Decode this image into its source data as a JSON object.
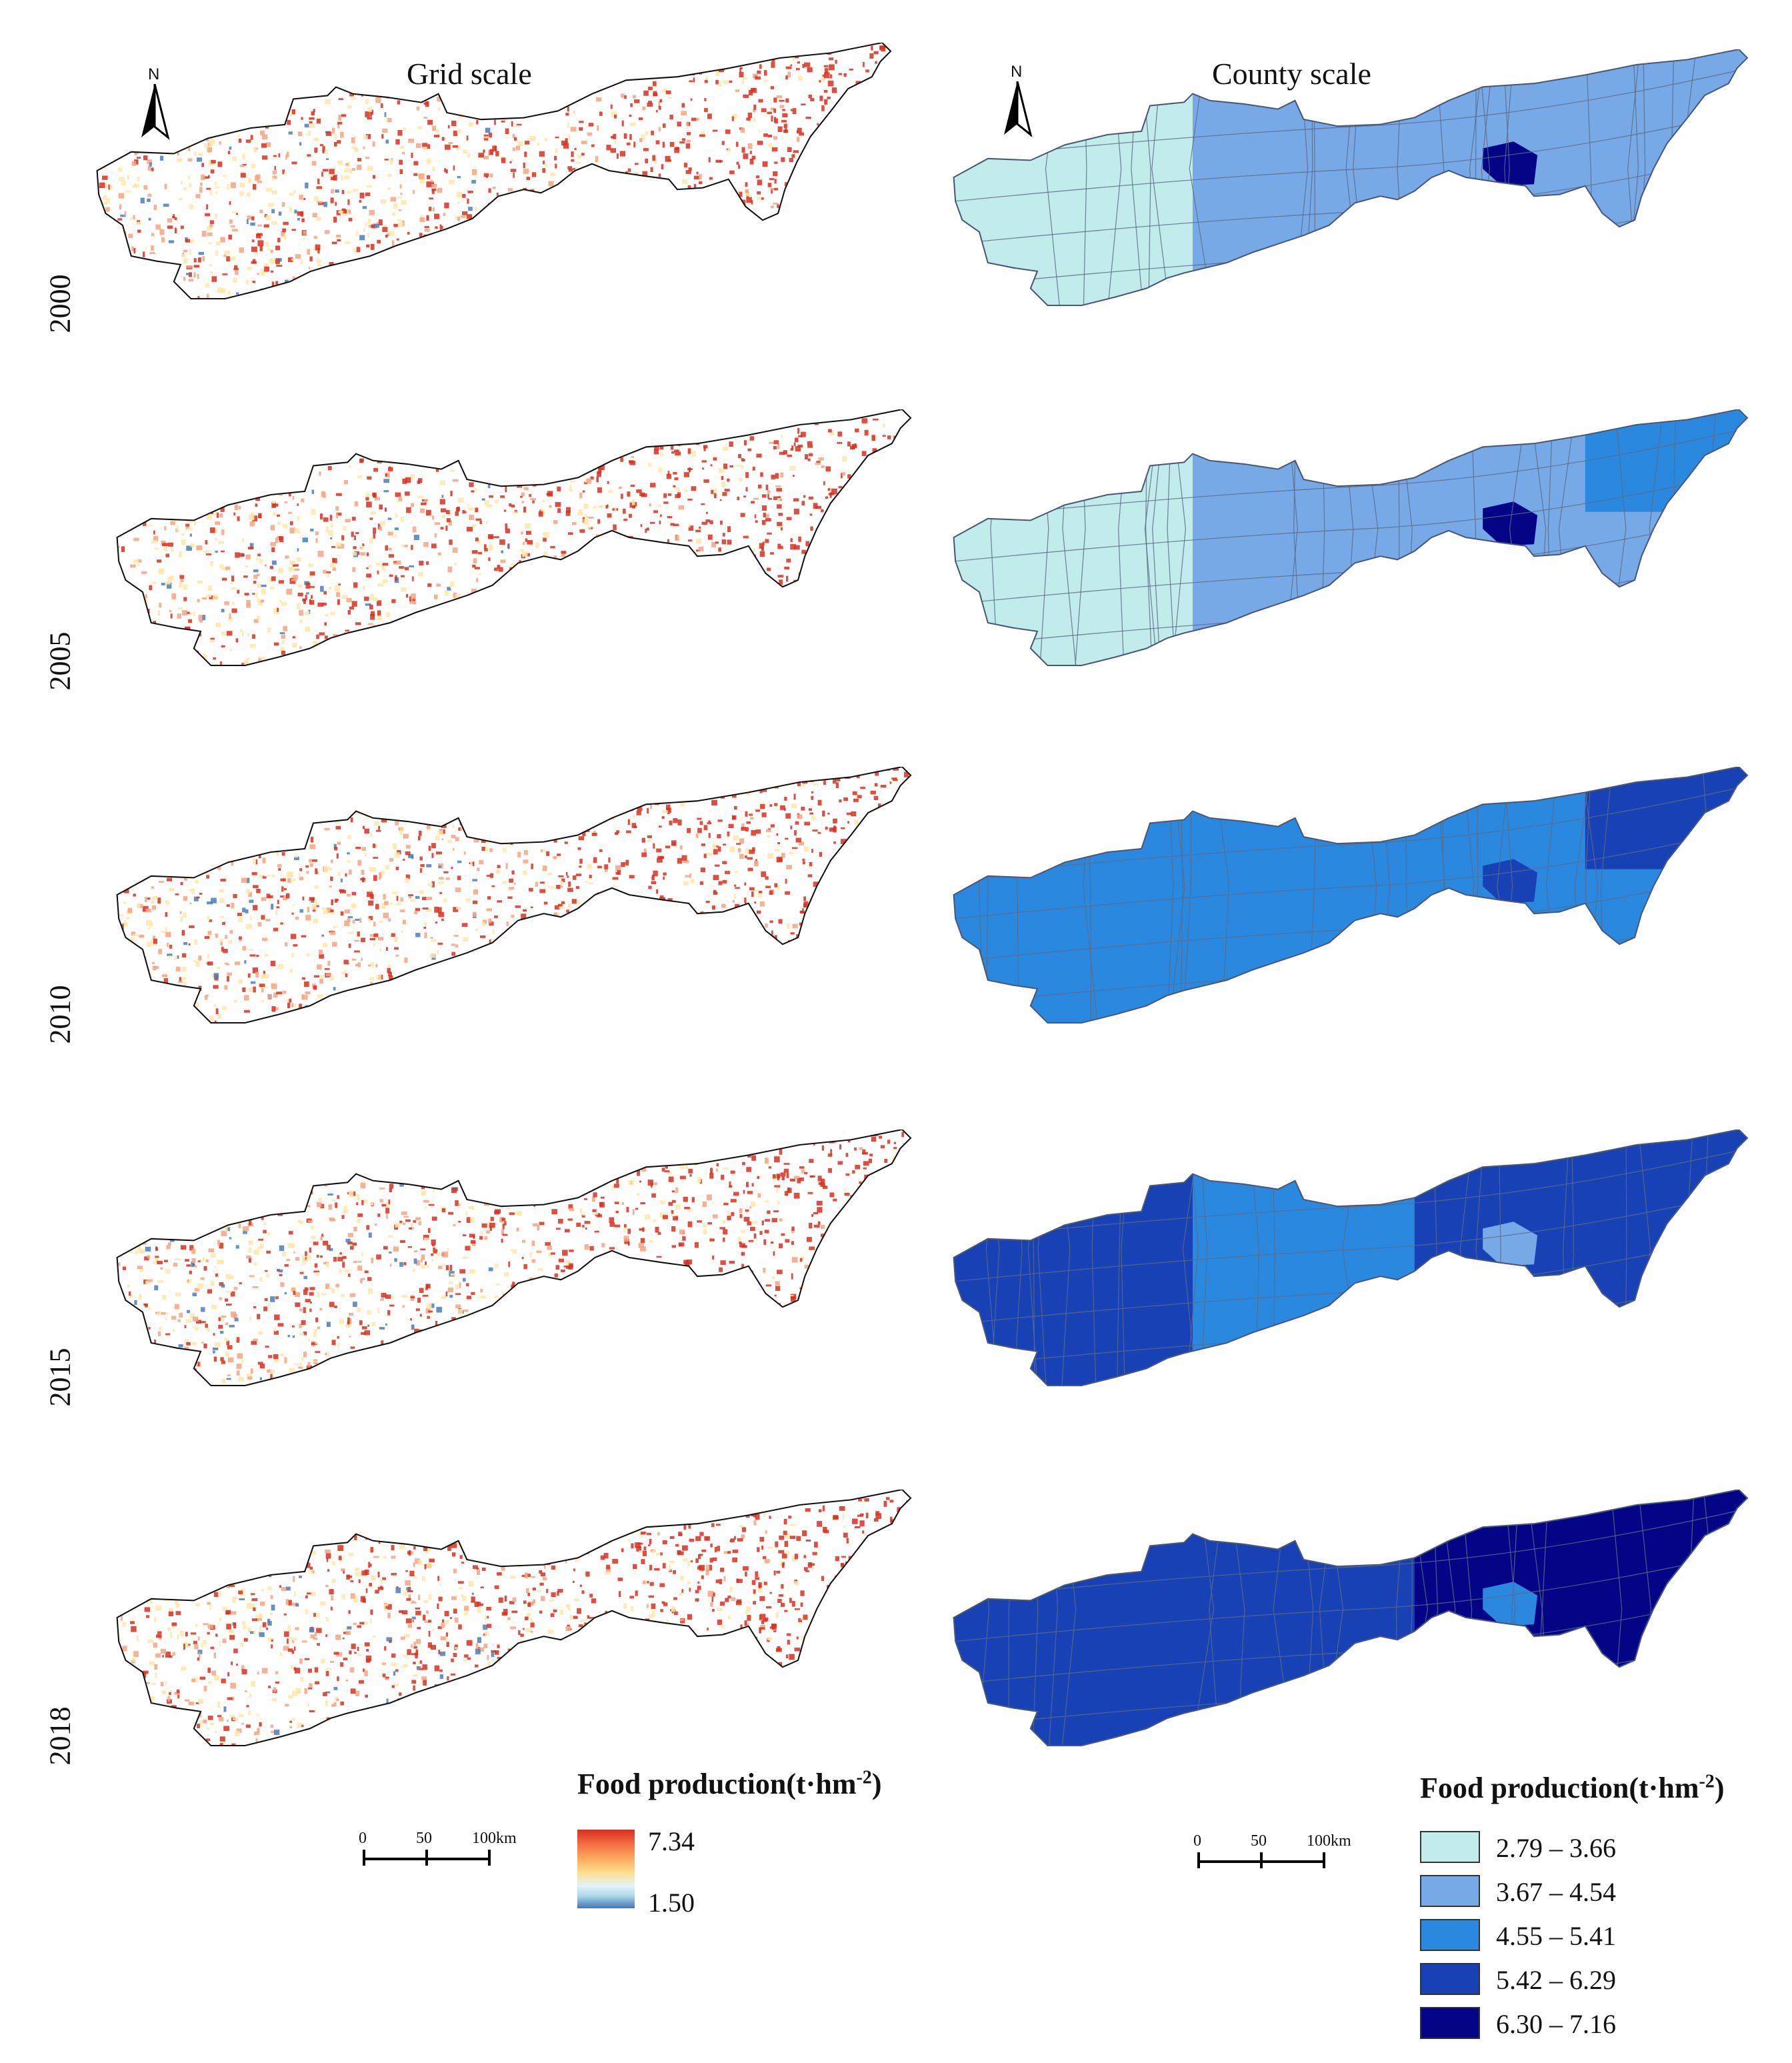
{
  "titles": {
    "grid": "Grid scale",
    "county": "County scale"
  },
  "north_label": "N",
  "years": [
    "2000",
    "2005",
    "2010",
    "2015",
    "2018"
  ],
  "grid_legend": {
    "title_main": "Food production(t·hm",
    "title_sup": "-2",
    "title_end": ")",
    "max": "7.34",
    "min": "1.50"
  },
  "county_legend": {
    "title_main": "Food production(t·hm",
    "title_sup": "-2",
    "title_end": ")",
    "classes": [
      {
        "label": "2.79 – 3.66",
        "color": "#c2ecec"
      },
      {
        "label": "3.67 – 4.54",
        "color": "#77a9e7"
      },
      {
        "label": "4.55 – 5.41",
        "color": "#2a88df"
      },
      {
        "label": "5.42 – 6.29",
        "color": "#1741b4"
      },
      {
        "label": "6.30 – 7.16",
        "color": "#040486"
      }
    ]
  },
  "scale_bar": {
    "labels": [
      "0",
      "50",
      "100km"
    ]
  },
  "county_maps": [
    {
      "year": "2000",
      "west": 0,
      "mid": 1,
      "east": 1,
      "hotspot": 4,
      "northeast": 1
    },
    {
      "year": "2005",
      "west": 0,
      "mid": 1,
      "east": 1,
      "hotspot": 4,
      "northeast": 2
    },
    {
      "year": "2010",
      "west": 2,
      "mid": 2,
      "east": 2,
      "hotspot": 3,
      "northeast": 3
    },
    {
      "year": "2015",
      "west": 3,
      "mid": 2,
      "east": 3,
      "hotspot": 1,
      "northeast": 3
    },
    {
      "year": "2018",
      "west": 3,
      "mid": 3,
      "east": 4,
      "hotspot": 2,
      "northeast": 4
    }
  ],
  "grid_colors": {
    "high": "#d7301f",
    "mid": "#f4a582",
    "low": "#fee8a8",
    "blue": "#4b7fb8"
  }
}
